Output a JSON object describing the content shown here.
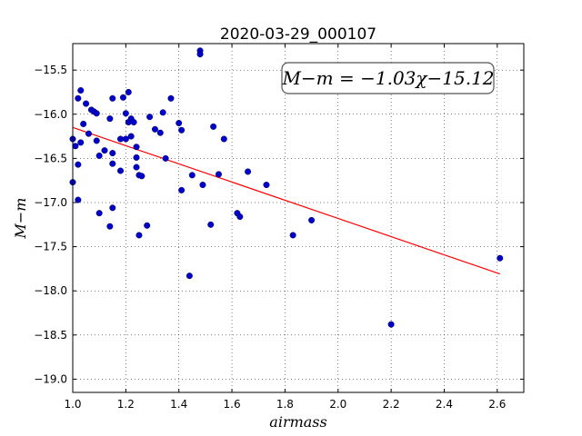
{
  "chart_data": {
    "type": "scatter",
    "title": "2020-03-29_000107",
    "xlabel": "airmass",
    "ylabel": "M−m",
    "annotation": "M−m = −1.03χ−15.12",
    "fit": {
      "slope": -1.03,
      "intercept": -15.12,
      "x_range": [
        1.0,
        2.61
      ],
      "color": "#ff0000"
    },
    "xlim": [
      1.0,
      2.7
    ],
    "ylim": [
      -19.15,
      -15.2
    ],
    "grid": true,
    "point_color": "#0000cc",
    "x_ticks": [
      1.0,
      1.2,
      1.4,
      1.6,
      1.8,
      2.0,
      2.2,
      2.4,
      2.6
    ],
    "x_tick_labels": [
      "1.0",
      "1.2",
      "1.4",
      "1.6",
      "1.8",
      "2.0",
      "2.2",
      "2.4",
      "2.6"
    ],
    "y_ticks": [
      -15.5,
      -16.0,
      -16.5,
      -17.0,
      -17.5,
      -18.0,
      -18.5,
      -19.0
    ],
    "y_tick_labels": [
      "−15.5",
      "−16.0",
      "−16.5",
      "−17.0",
      "−17.5",
      "−18.0",
      "−18.5",
      "−19.0"
    ],
    "points": [
      [
        1.0,
        -16.28
      ],
      [
        1.0,
        -16.77
      ],
      [
        1.01,
        -16.36
      ],
      [
        1.02,
        -15.82
      ],
      [
        1.02,
        -16.97
      ],
      [
        1.02,
        -16.57
      ],
      [
        1.03,
        -15.73
      ],
      [
        1.03,
        -16.32
      ],
      [
        1.04,
        -16.11
      ],
      [
        1.05,
        -15.88
      ],
      [
        1.06,
        -16.22
      ],
      [
        1.07,
        -15.95
      ],
      [
        1.08,
        -15.97
      ],
      [
        1.09,
        -16.3
      ],
      [
        1.09,
        -15.99
      ],
      [
        1.1,
        -16.47
      ],
      [
        1.1,
        -17.12
      ],
      [
        1.12,
        -16.41
      ],
      [
        1.14,
        -16.05
      ],
      [
        1.14,
        -17.27
      ],
      [
        1.15,
        -15.82
      ],
      [
        1.15,
        -16.44
      ],
      [
        1.15,
        -16.56
      ],
      [
        1.15,
        -17.06
      ],
      [
        1.18,
        -16.28
      ],
      [
        1.18,
        -16.64
      ],
      [
        1.19,
        -15.81
      ],
      [
        1.2,
        -15.99
      ],
      [
        1.2,
        -16.28
      ],
      [
        1.21,
        -16.09
      ],
      [
        1.21,
        -15.75
      ],
      [
        1.22,
        -16.05
      ],
      [
        1.22,
        -16.25
      ],
      [
        1.23,
        -16.09
      ],
      [
        1.24,
        -16.37
      ],
      [
        1.24,
        -16.6
      ],
      [
        1.24,
        -16.49
      ],
      [
        1.25,
        -16.69
      ],
      [
        1.25,
        -17.37
      ],
      [
        1.26,
        -16.7
      ],
      [
        1.28,
        -17.26
      ],
      [
        1.29,
        -16.03
      ],
      [
        1.31,
        -16.17
      ],
      [
        1.33,
        -16.21
      ],
      [
        1.34,
        -15.98
      ],
      [
        1.35,
        -16.5
      ],
      [
        1.37,
        -15.82
      ],
      [
        1.4,
        -16.1
      ],
      [
        1.41,
        -16.18
      ],
      [
        1.41,
        -16.86
      ],
      [
        1.44,
        -17.83
      ],
      [
        1.45,
        -16.69
      ],
      [
        1.48,
        -15.28
      ],
      [
        1.48,
        -15.32
      ],
      [
        1.49,
        -16.8
      ],
      [
        1.52,
        -17.25
      ],
      [
        1.53,
        -16.14
      ],
      [
        1.55,
        -16.68
      ],
      [
        1.57,
        -16.28
      ],
      [
        1.62,
        -17.12
      ],
      [
        1.63,
        -17.16
      ],
      [
        1.66,
        -16.65
      ],
      [
        1.73,
        -16.8
      ],
      [
        1.83,
        -17.37
      ],
      [
        1.9,
        -17.2
      ],
      [
        2.2,
        -18.38
      ],
      [
        2.61,
        -17.63
      ]
    ]
  }
}
